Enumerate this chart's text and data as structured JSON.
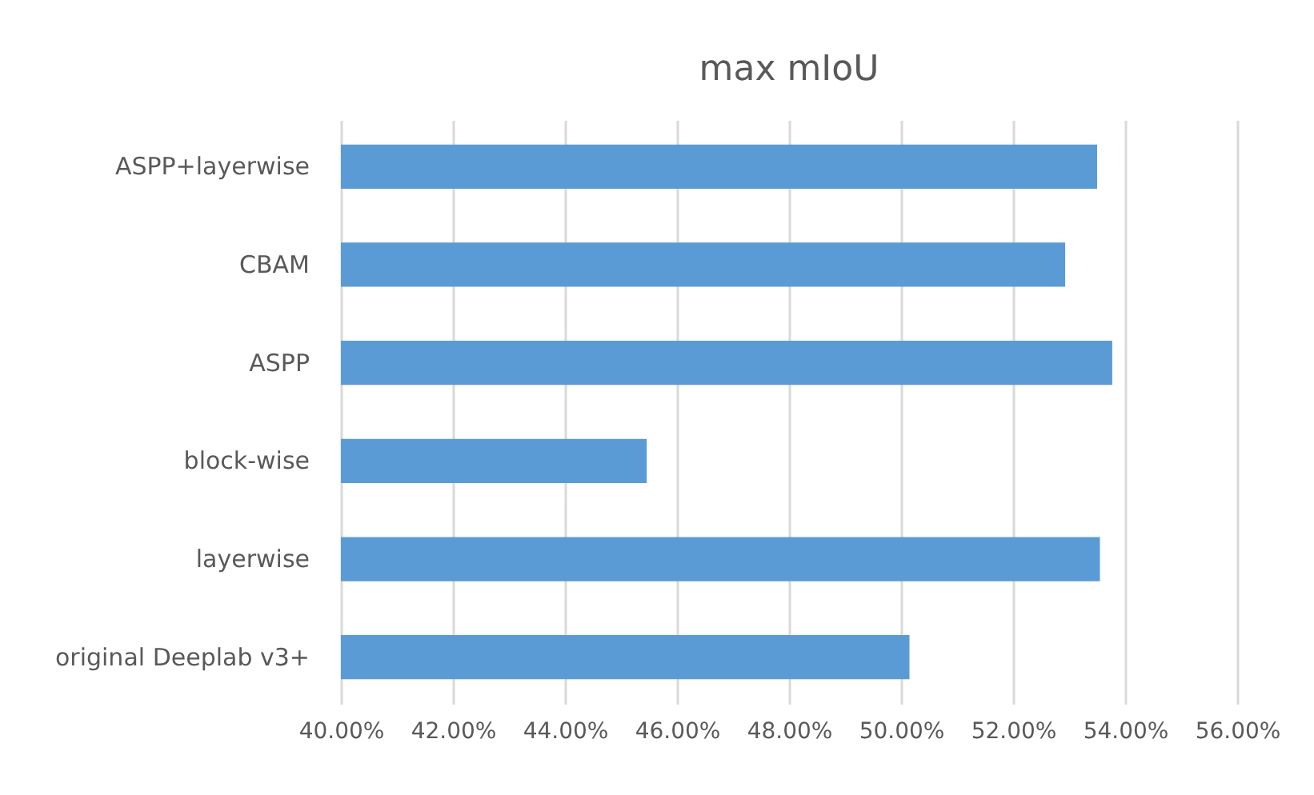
{
  "chart_data": {
    "type": "bar",
    "orientation": "horizontal",
    "title": "max mIoU",
    "categories": [
      "ASPP+layerwise",
      "CBAM",
      "ASPP",
      "block-wise",
      "layerwise",
      "original Deeplab v3+"
    ],
    "values": [
      53.5,
      52.93,
      53.77,
      45.46,
      53.55,
      50.15
    ],
    "color": "#5b9bd5",
    "xlim": [
      40,
      56
    ],
    "xticks": [
      {
        "value": 40,
        "label": "40.00%"
      },
      {
        "value": 42,
        "label": "42.00%"
      },
      {
        "value": 44,
        "label": "44.00%"
      },
      {
        "value": 46,
        "label": "46.00%"
      },
      {
        "value": 48,
        "label": "48.00%"
      },
      {
        "value": 50,
        "label": "50.00%"
      },
      {
        "value": 52,
        "label": "52.00%"
      },
      {
        "value": 54,
        "label": "54.00%"
      },
      {
        "value": 56,
        "label": "56.00%"
      }
    ],
    "grid": "x"
  }
}
